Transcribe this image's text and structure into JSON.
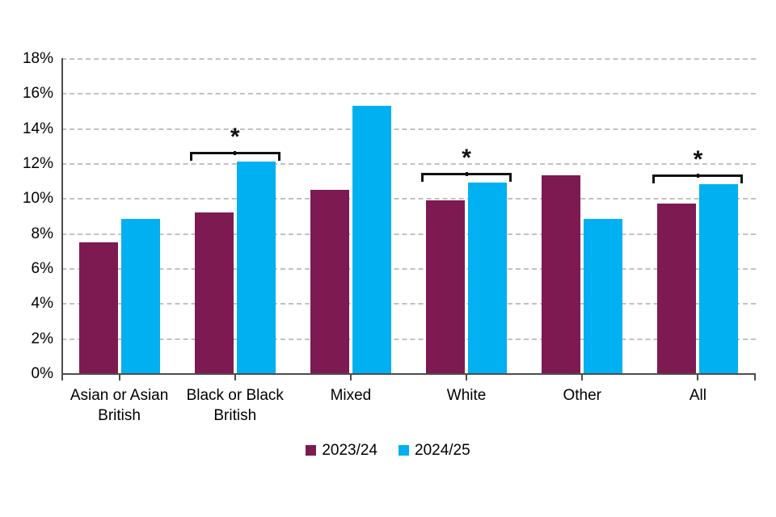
{
  "chart_data": {
    "type": "bar",
    "title": "",
    "xlabel": "",
    "ylabel": "",
    "categories": [
      "Asian or Asian British",
      "Black or Black British",
      "Mixed",
      "White",
      "Other",
      "All"
    ],
    "series": [
      {
        "name": "2023/24",
        "color": "#7D1A52",
        "values": [
          7.5,
          9.2,
          10.5,
          9.9,
          11.3,
          9.7
        ]
      },
      {
        "name": "2024/25",
        "color": "#00B0F0",
        "values": [
          8.8,
          12.1,
          15.3,
          10.9,
          8.8,
          10.8
        ]
      }
    ],
    "ylim": [
      0,
      18
    ],
    "y_tick_step": 2,
    "y_ticks": [
      "0%",
      "2%",
      "4%",
      "6%",
      "8%",
      "10%",
      "12%",
      "14%",
      "16%",
      "18%"
    ],
    "grid": "horizontal-dashed",
    "legend_position": "bottom-center",
    "significance_markers": [
      {
        "category_index": 1,
        "category": "Black or Black British",
        "label": "*"
      },
      {
        "category_index": 3,
        "category": "White",
        "label": "*"
      },
      {
        "category_index": 5,
        "category": "All",
        "label": "*"
      }
    ]
  },
  "legend": {
    "items": [
      {
        "label": "2023/24",
        "color": "#7D1A52"
      },
      {
        "label": "2024/25",
        "color": "#00B0F0"
      }
    ]
  }
}
